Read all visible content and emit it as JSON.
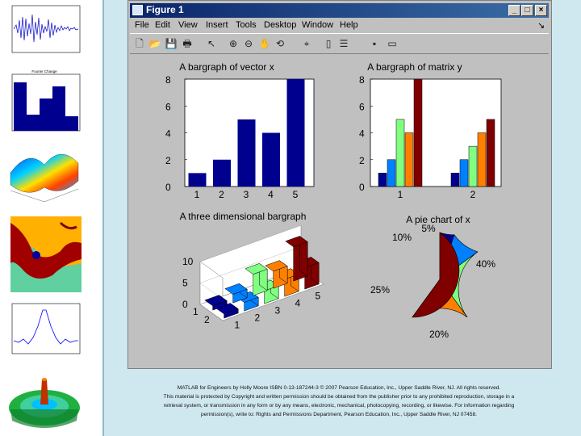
{
  "window": {
    "title": "Figure 1",
    "buttons": {
      "minimize": "_",
      "maximize": "□",
      "close": "×"
    }
  },
  "menu": [
    "File",
    "Edit",
    "View",
    "Insert",
    "Tools",
    "Desktop",
    "Window",
    "Help"
  ],
  "menu_arrow": "↘",
  "toolbar_icons": [
    "new-file-icon",
    "open-folder-icon",
    "save-icon",
    "print-icon",
    "pointer-icon",
    "zoom-in-icon",
    "zoom-out-icon",
    "pan-hand-icon",
    "rotate-3d-icon",
    "data-cursor-icon",
    "insert-colorbar-icon",
    "insert-legend-icon",
    "hide-plot-tools-icon",
    "show-plot-tools-icon"
  ],
  "thumbnails": [
    "audio-waveform-thumbnail",
    "histogram-thumbnail",
    "surface-plot-thumbnail",
    "fractal-thumbnail",
    "sinc-plot-thumbnail",
    "3d-ripple-surface-thumbnail"
  ],
  "thumbnail_text": {
    "histogram_title": "Fourier Change"
  },
  "colors": {
    "dark_blue": "#00008f",
    "blue": "#0080ff",
    "green": "#80ff80",
    "orange": "#ff8000",
    "maroon": "#800000"
  },
  "chart_data": [
    {
      "type": "bar",
      "title": "A bargraph of vector x",
      "categories": [
        "1",
        "2",
        "3",
        "4",
        "5"
      ],
      "values": [
        1,
        2,
        5,
        4,
        8
      ],
      "ylim": [
        0,
        8
      ],
      "yticks": [
        "0",
        "2",
        "4",
        "6",
        "8"
      ]
    },
    {
      "type": "bar",
      "title": "A bargraph of matrix y",
      "categories": [
        "1",
        "2"
      ],
      "series": [
        {
          "values": [
            1,
            1
          ]
        },
        {
          "values": [
            2,
            2
          ]
        },
        {
          "values": [
            5,
            3
          ]
        },
        {
          "values": [
            4,
            4
          ]
        },
        {
          "values": [
            8,
            5
          ]
        }
      ],
      "ylim": [
        0,
        8
      ],
      "yticks": [
        "0",
        "2",
        "4",
        "6",
        "8"
      ]
    },
    {
      "type": "bar",
      "title": "A three dimensional bargraph",
      "x_ticks": [
        "1",
        "2",
        "3",
        "4",
        "5"
      ],
      "y_ticks": [
        "1",
        "2"
      ],
      "z_ticks": [
        "0",
        "5",
        "10"
      ],
      "values": [
        [
          1,
          2,
          5,
          4,
          8
        ],
        [
          1,
          2,
          3,
          4,
          5
        ]
      ]
    },
    {
      "type": "pie",
      "title": "A pie chart of x",
      "values": [
        5,
        10,
        25,
        20,
        40
      ],
      "labels": [
        "5%",
        "10%",
        "25%",
        "20%",
        "40%"
      ]
    }
  ],
  "caption": {
    "line1": "MATLAB for Engineers by Holly Moore ISBN 0-13-187244-3 © 2007 Pearson Education, Inc., Upper Saddle River, NJ. All rights reserved.",
    "line2": "This material is protected by Copyright and written permission should be obtained from the publisher prior to any prohibited reproduction, storage in a",
    "line3": "retrieval system, or transmission in any form or by any means, electronic, mechanical, photocopying, recording, or likewise. For information regarding",
    "line4": "permission(s), write to: Rights and Permissions Department, Pearson Education, Inc., Upper Saddle River, NJ 07458."
  }
}
